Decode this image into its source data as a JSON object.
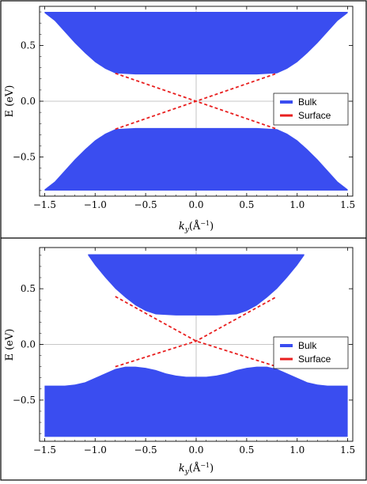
{
  "chart_data": [
    {
      "type": "area",
      "panel": "top",
      "xlabel_main": "k",
      "xlabel_sub": "y",
      "xlabel_unit": "(Å",
      "xlabel_exp": "−1",
      "xlabel_close": ")",
      "ylabel": "E (eV)",
      "xlim": [
        -1.55,
        1.55
      ],
      "ylim": [
        -0.85,
        0.85
      ],
      "xticks": [
        -1.5,
        -1.0,
        -0.5,
        0.0,
        0.5,
        1.0,
        1.5
      ],
      "xtick_labels": [
        "−1.5",
        "−1.0",
        "−0.5",
        "0.0",
        "0.5",
        "1.0",
        "1.5"
      ],
      "yticks": [
        0.5,
        0.0,
        -0.5
      ],
      "ytick_labels": [
        "0.5",
        "0.0",
        "−0.5"
      ],
      "legend_position": "right-middle",
      "series": [
        {
          "name": "Bulk",
          "color": "#3a4df0",
          "upper_band": {
            "x": [
              -1.5,
              -1.4,
              -1.3,
              -1.2,
              -1.1,
              -1.0,
              -0.9,
              -0.8,
              -0.6,
              -0.4,
              0.0,
              0.4,
              0.6,
              0.8,
              0.9,
              1.0,
              1.1,
              1.2,
              1.3,
              1.4,
              1.5
            ],
            "lower": [
              0.79,
              0.72,
              0.62,
              0.52,
              0.43,
              0.35,
              0.29,
              0.25,
              0.24,
              0.24,
              0.24,
              0.24,
              0.24,
              0.25,
              0.29,
              0.35,
              0.43,
              0.52,
              0.62,
              0.72,
              0.79
            ],
            "upper": 0.8
          },
          "lower_band": {
            "x": [
              -1.5,
              -1.4,
              -1.3,
              -1.2,
              -1.1,
              -1.0,
              -0.9,
              -0.8,
              -0.6,
              -0.4,
              0.0,
              0.4,
              0.6,
              0.8,
              0.9,
              1.0,
              1.1,
              1.2,
              1.3,
              1.4,
              1.5
            ],
            "upper": [
              -0.79,
              -0.72,
              -0.62,
              -0.52,
              -0.43,
              -0.35,
              -0.29,
              -0.25,
              -0.24,
              -0.24,
              -0.24,
              -0.24,
              -0.24,
              -0.25,
              -0.29,
              -0.35,
              -0.43,
              -0.52,
              -0.62,
              -0.72,
              -0.79
            ],
            "lower": -0.8
          }
        },
        {
          "name": "Surface",
          "color": "#e81f1f",
          "lines": [
            {
              "x": [
                -0.8,
                0.8
              ],
              "y": [
                0.25,
                -0.25
              ]
            },
            {
              "x": [
                -0.8,
                0.8
              ],
              "y": [
                -0.25,
                0.25
              ]
            }
          ]
        }
      ]
    },
    {
      "type": "area",
      "panel": "bottom",
      "xlabel_main": "k",
      "xlabel_sub": "y",
      "xlabel_unit": "(Å",
      "xlabel_exp": "−1",
      "xlabel_close": ")",
      "ylabel": "E (eV)",
      "xlim": [
        -1.55,
        1.55
      ],
      "ylim": [
        -0.87,
        0.87
      ],
      "xticks": [
        -1.5,
        -1.0,
        -0.5,
        0.0,
        0.5,
        1.0,
        1.5
      ],
      "xtick_labels": [
        "−1.5",
        "−1.0",
        "−0.5",
        "0.0",
        "0.5",
        "1.0",
        "1.5"
      ],
      "yticks": [
        0.5,
        0.0,
        -0.5
      ],
      "ytick_labels": [
        "0.5",
        "0.0",
        "−0.5"
      ],
      "legend_position": "right-middle",
      "series": [
        {
          "name": "Bulk",
          "color": "#3a4df0",
          "upper_band": {
            "x": [
              -1.07,
              -1.0,
              -0.9,
              -0.8,
              -0.7,
              -0.6,
              -0.5,
              -0.4,
              -0.2,
              0.0,
              0.2,
              0.4,
              0.5,
              0.6,
              0.7,
              0.8,
              0.9,
              1.0,
              1.07
            ],
            "lower": [
              0.8,
              0.71,
              0.6,
              0.5,
              0.42,
              0.35,
              0.3,
              0.27,
              0.26,
              0.26,
              0.26,
              0.27,
              0.3,
              0.35,
              0.42,
              0.5,
              0.6,
              0.71,
              0.8
            ],
            "upper": 0.81
          },
          "lower_band": {
            "x": [
              -1.5,
              -1.3,
              -1.2,
              -1.1,
              -1.0,
              -0.9,
              -0.8,
              -0.7,
              -0.6,
              -0.5,
              -0.4,
              -0.3,
              -0.2,
              -0.1,
              0.0,
              0.1,
              0.2,
              0.3,
              0.4,
              0.5,
              0.6,
              0.7,
              0.8,
              0.9,
              1.0,
              1.1,
              1.2,
              1.3,
              1.5
            ],
            "upper": [
              -0.37,
              -0.37,
              -0.36,
              -0.34,
              -0.3,
              -0.26,
              -0.22,
              -0.2,
              -0.2,
              -0.21,
              -0.23,
              -0.26,
              -0.28,
              -0.29,
              -0.29,
              -0.29,
              -0.28,
              -0.26,
              -0.23,
              -0.21,
              -0.2,
              -0.2,
              -0.22,
              -0.26,
              -0.3,
              -0.34,
              -0.36,
              -0.37,
              -0.37
            ],
            "lower": -0.83
          }
        },
        {
          "name": "Surface",
          "color": "#e81f1f",
          "lines": [
            {
              "x": [
                -0.8,
                0.0,
                0.8
              ],
              "y": [
                0.43,
                0.03,
                -0.2
              ]
            },
            {
              "x": [
                -0.8,
                0.0,
                0.8
              ],
              "y": [
                -0.2,
                0.03,
                0.43
              ]
            }
          ]
        }
      ]
    }
  ]
}
